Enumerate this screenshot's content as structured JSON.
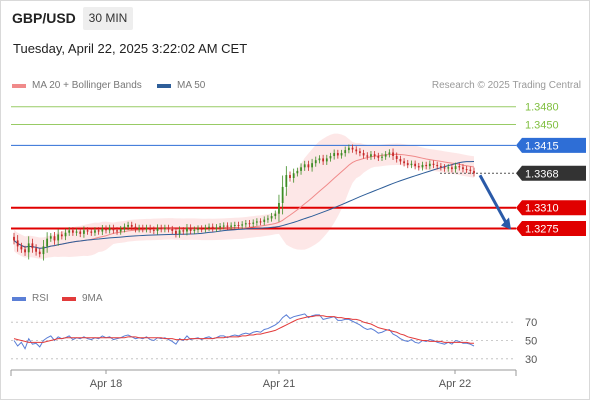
{
  "header": {
    "symbol": "GBP/USD",
    "timeframe": "30 MIN",
    "datetime": "Tuesday, April 22, 2025 3:22:02 AM CET"
  },
  "legend": {
    "ma20": {
      "label": "MA 20 + Bollinger Bands",
      "color": "#f08a8a"
    },
    "ma50": {
      "label": "MA 50",
      "color": "#2e5e99"
    },
    "credit": "Research © 2025 Trading Central"
  },
  "rsi_legend": {
    "rsi": {
      "label": "RSI",
      "color": "#5b7fd6"
    },
    "ma": {
      "label": "9MA",
      "color": "#e23b3b"
    }
  },
  "chart_data": [
    {
      "type": "candlestick",
      "title": "GBP/USD",
      "ylim": [
        1.318,
        1.3498
      ],
      "x_labels": [
        "Apr 18",
        "Apr 21",
        "Apr 22"
      ],
      "levels": [
        {
          "label": "1.3480",
          "value": 1.348,
          "kind": "resistance",
          "color": "#7fbf3f"
        },
        {
          "label": "1.3450",
          "value": 1.345,
          "kind": "resistance",
          "color": "#7fbf3f"
        },
        {
          "label": "1.3415",
          "value": 1.3415,
          "kind": "pivot",
          "color": "#2e6ed6"
        },
        {
          "label": "1.3368",
          "value": 1.3368,
          "kind": "last",
          "color": "#333333"
        },
        {
          "label": "1.3310",
          "value": 1.331,
          "kind": "support",
          "color": "#e00000"
        },
        {
          "label": "1.3275",
          "value": 1.3275,
          "kind": "support",
          "color": "#e00000"
        }
      ],
      "series": [
        {
          "name": "MA 20 + Bollinger Bands"
        },
        {
          "name": "MA 50"
        }
      ],
      "close": [
        1.3255,
        1.3245,
        1.324,
        1.3235,
        1.325,
        1.3242,
        1.3236,
        1.3232,
        1.3245,
        1.3258,
        1.3262,
        1.3255,
        1.3265,
        1.3262,
        1.3268,
        1.3272,
        1.3268,
        1.327,
        1.3266,
        1.3272,
        1.327,
        1.3268,
        1.3272,
        1.327,
        1.3275,
        1.3272,
        1.3276,
        1.3272,
        1.327,
        1.3274,
        1.3278,
        1.3281,
        1.3278,
        1.3274,
        1.3276,
        1.3274,
        1.3276,
        1.3273,
        1.3271,
        1.3276,
        1.3274,
        1.3276,
        1.3274,
        1.3271,
        1.3266,
        1.3272,
        1.327,
        1.3276,
        1.3271,
        1.3273,
        1.3275,
        1.3274,
        1.3276,
        1.3278,
        1.3275,
        1.3277,
        1.3279,
        1.328,
        1.3278,
        1.328,
        1.3281,
        1.328,
        1.3282,
        1.3284,
        1.3283,
        1.3285,
        1.3287,
        1.3286,
        1.329,
        1.3292,
        1.3296,
        1.33,
        1.3318,
        1.3345,
        1.3365,
        1.336,
        1.3368,
        1.3372,
        1.3378,
        1.3383,
        1.3378,
        1.3385,
        1.339,
        1.3393,
        1.3388,
        1.3393,
        1.3397,
        1.3402,
        1.3398,
        1.3402,
        1.3407,
        1.3411,
        1.3408,
        1.3405,
        1.3402,
        1.3398,
        1.3396,
        1.34,
        1.3397,
        1.3394,
        1.3396,
        1.34,
        1.3403,
        1.3397,
        1.3392,
        1.3388,
        1.3385,
        1.3382,
        1.3384,
        1.338,
        1.3378,
        1.3382,
        1.338,
        1.3384,
        1.3382,
        1.338,
        1.3378,
        1.3376,
        1.3378,
        1.3375,
        1.338,
        1.3378,
        1.3375,
        1.3374,
        1.3372,
        1.3368
      ],
      "last": 1.3368,
      "projection": {
        "from": 1.3368,
        "to": 1.3275
      }
    },
    {
      "type": "line",
      "title": "RSI",
      "ylim": [
        20,
        80
      ],
      "yticks": [
        "70",
        "50",
        "30"
      ],
      "series": [
        {
          "name": "RSI",
          "values": [
            50,
            44,
            48,
            41,
            52,
            46,
            47,
            43,
            50,
            53,
            55,
            50,
            54,
            52,
            53,
            55,
            51,
            53,
            52,
            54,
            52,
            51,
            53,
            52,
            55,
            53,
            54,
            51,
            52,
            53,
            55,
            56,
            54,
            52,
            53,
            52,
            54,
            51,
            50,
            53,
            52,
            53,
            51,
            49,
            46,
            52,
            50,
            55,
            51,
            52,
            53,
            51,
            53,
            54,
            52,
            53,
            55,
            55,
            53,
            55,
            56,
            55,
            57,
            58,
            57,
            59,
            60,
            59,
            62,
            63,
            65,
            67,
            70,
            75,
            78,
            74,
            76,
            77,
            78,
            79,
            75,
            77,
            78,
            78,
            73,
            74,
            75,
            76,
            72,
            72,
            73,
            73,
            71,
            69,
            67,
            64,
            62,
            63,
            61,
            58,
            59,
            61,
            62,
            57,
            55,
            52,
            50,
            49,
            51,
            48,
            47,
            50,
            49,
            51,
            50,
            48,
            47,
            46,
            48,
            46,
            50,
            49,
            47,
            47,
            46,
            44
          ]
        },
        {
          "name": "9MA",
          "values": [
            52,
            51,
            50,
            49,
            48,
            48,
            48,
            48,
            48,
            49,
            50,
            51,
            52,
            52,
            53,
            53,
            53,
            53,
            53,
            53,
            53,
            53,
            53,
            53,
            53,
            53,
            53,
            53,
            53,
            53,
            53,
            54,
            54,
            54,
            53,
            53,
            53,
            53,
            53,
            53,
            53,
            52,
            52,
            52,
            51,
            51,
            51,
            51,
            52,
            52,
            52,
            52,
            52,
            52,
            52,
            53,
            53,
            53,
            54,
            54,
            54,
            54,
            55,
            55,
            56,
            56,
            57,
            57,
            58,
            59,
            60,
            61,
            63,
            65,
            67,
            69,
            71,
            73,
            74,
            75,
            76,
            76,
            77,
            77,
            77,
            76,
            76,
            76,
            75,
            75,
            74,
            74,
            73,
            73,
            72,
            70,
            69,
            68,
            66,
            64,
            63,
            62,
            61,
            60,
            59,
            57,
            56,
            54,
            53,
            52,
            51,
            50,
            50,
            49,
            49,
            49,
            49,
            48,
            48,
            48,
            48,
            48,
            48,
            48,
            47,
            47
          ]
        }
      ]
    }
  ]
}
